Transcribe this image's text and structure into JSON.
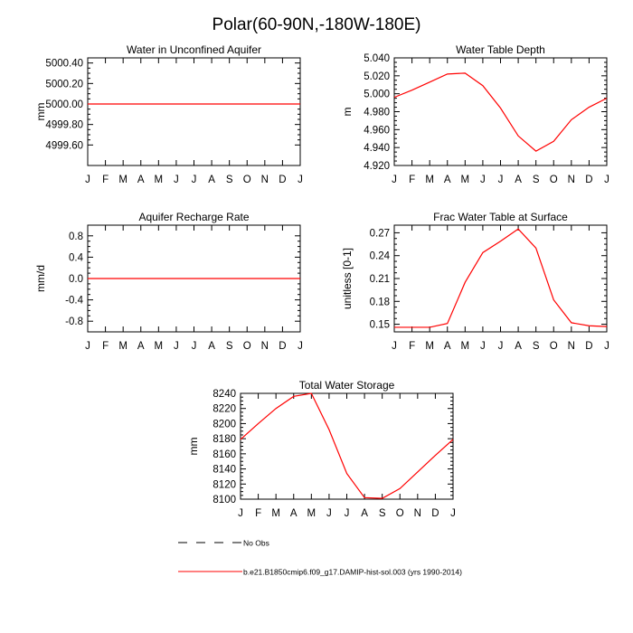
{
  "figure": {
    "title": "Polar(60-90N,-180W-180E)"
  },
  "chart_data": [
    {
      "type": "line",
      "title": "Water in Unconfined Aquifer",
      "ylabel": "mm",
      "x": [
        "J",
        "F",
        "M",
        "A",
        "M",
        "J",
        "J",
        "A",
        "S",
        "O",
        "N",
        "D",
        "J"
      ],
      "ylim": [
        4999.4,
        5000.45
      ],
      "yticks": [
        4999.6,
        4999.8,
        5000.0,
        5000.2,
        5000.4
      ],
      "ytick_labels": [
        "4999.60",
        "4999.80",
        "5000.00",
        "5000.20",
        "5000.40"
      ],
      "series": [
        {
          "name": "b.e21.B1850cmip6.f09_g17.DAMIP-hist-sol.003 (yrs 1990-2014)",
          "color": "#ff0000",
          "values": [
            5000.0,
            5000.0,
            5000.0,
            5000.0,
            5000.0,
            5000.0,
            5000.0,
            5000.0,
            5000.0,
            5000.0,
            5000.0,
            5000.0,
            5000.0
          ]
        }
      ]
    },
    {
      "type": "line",
      "title": "Water Table Depth",
      "ylabel": "m",
      "x": [
        "J",
        "F",
        "M",
        "A",
        "M",
        "J",
        "J",
        "A",
        "S",
        "O",
        "N",
        "D",
        "J"
      ],
      "ylim": [
        4.92,
        5.04
      ],
      "yticks": [
        4.92,
        4.94,
        4.96,
        4.98,
        5.0,
        5.02,
        5.04
      ],
      "ytick_labels": [
        "4.920",
        "4.940",
        "4.960",
        "4.980",
        "5.000",
        "5.020",
        "5.040"
      ],
      "series": [
        {
          "name": "b.e21.B1850cmip6.f09_g17.DAMIP-hist-sol.003 (yrs 1990-2014)",
          "color": "#ff0000",
          "values": [
            4.996,
            5.004,
            5.013,
            5.022,
            5.023,
            5.009,
            4.984,
            4.953,
            4.936,
            4.947,
            4.971,
            4.985,
            4.995
          ]
        }
      ]
    },
    {
      "type": "line",
      "title": "Aquifer Recharge Rate",
      "ylabel": "mm/d",
      "x": [
        "J",
        "F",
        "M",
        "A",
        "M",
        "J",
        "J",
        "A",
        "S",
        "O",
        "N",
        "D",
        "J"
      ],
      "ylim": [
        -1.0,
        1.0
      ],
      "yticks": [
        -0.8,
        -0.4,
        0.0,
        0.4,
        0.8
      ],
      "ytick_labels": [
        "-0.8",
        "-0.4",
        "0.0",
        "0.4",
        "0.8"
      ],
      "series": [
        {
          "name": "b.e21.B1850cmip6.f09_g17.DAMIP-hist-sol.003 (yrs 1990-2014)",
          "color": "#ff0000",
          "values": [
            0,
            0,
            0,
            0,
            0,
            0,
            0,
            0,
            0,
            0,
            0,
            0,
            0
          ]
        }
      ]
    },
    {
      "type": "line",
      "title": "Frac Water Table at Surface",
      "ylabel": "unitless [0-1]",
      "x": [
        "J",
        "F",
        "M",
        "A",
        "M",
        "J",
        "J",
        "A",
        "S",
        "O",
        "N",
        "D",
        "J"
      ],
      "ylim": [
        0.14,
        0.28
      ],
      "yticks": [
        0.15,
        0.18,
        0.21,
        0.24,
        0.27
      ],
      "ytick_labels": [
        "0.15",
        "0.18",
        "0.21",
        "0.24",
        "0.27"
      ],
      "series": [
        {
          "name": "b.e21.B1850cmip6.f09_g17.DAMIP-hist-sol.003 (yrs 1990-2014)",
          "color": "#ff0000",
          "values": [
            0.146,
            0.146,
            0.146,
            0.151,
            0.205,
            0.244,
            0.259,
            0.275,
            0.25,
            0.182,
            0.152,
            0.148,
            0.147
          ]
        }
      ]
    },
    {
      "type": "line",
      "title": "Total Water Storage",
      "ylabel": "mm",
      "x": [
        "J",
        "F",
        "M",
        "A",
        "M",
        "J",
        "J",
        "A",
        "S",
        "O",
        "N",
        "D",
        "J"
      ],
      "ylim": [
        8100,
        8240
      ],
      "yticks": [
        8100,
        8120,
        8140,
        8160,
        8180,
        8200,
        8220,
        8240
      ],
      "ytick_labels": [
        "8100",
        "8120",
        "8140",
        "8160",
        "8180",
        "8200",
        "8220",
        "8240"
      ],
      "series": [
        {
          "name": "b.e21.B1850cmip6.f09_g17.DAMIP-hist-sol.003 (yrs 1990-2014)",
          "color": "#ff0000",
          "values": [
            8179,
            8200,
            8220,
            8236,
            8240,
            8192,
            8134,
            8102,
            8101,
            8114,
            8136,
            8158,
            8179
          ]
        }
      ]
    }
  ],
  "legend": {
    "entries": [
      {
        "label": "No Obs",
        "color": "#000000",
        "dash": true
      },
      {
        "label": "b.e21.B1850cmip6.f09_g17.DAMIP-hist-sol.003 (yrs 1990-2014)",
        "color": "#ff0000",
        "dash": false
      }
    ]
  }
}
